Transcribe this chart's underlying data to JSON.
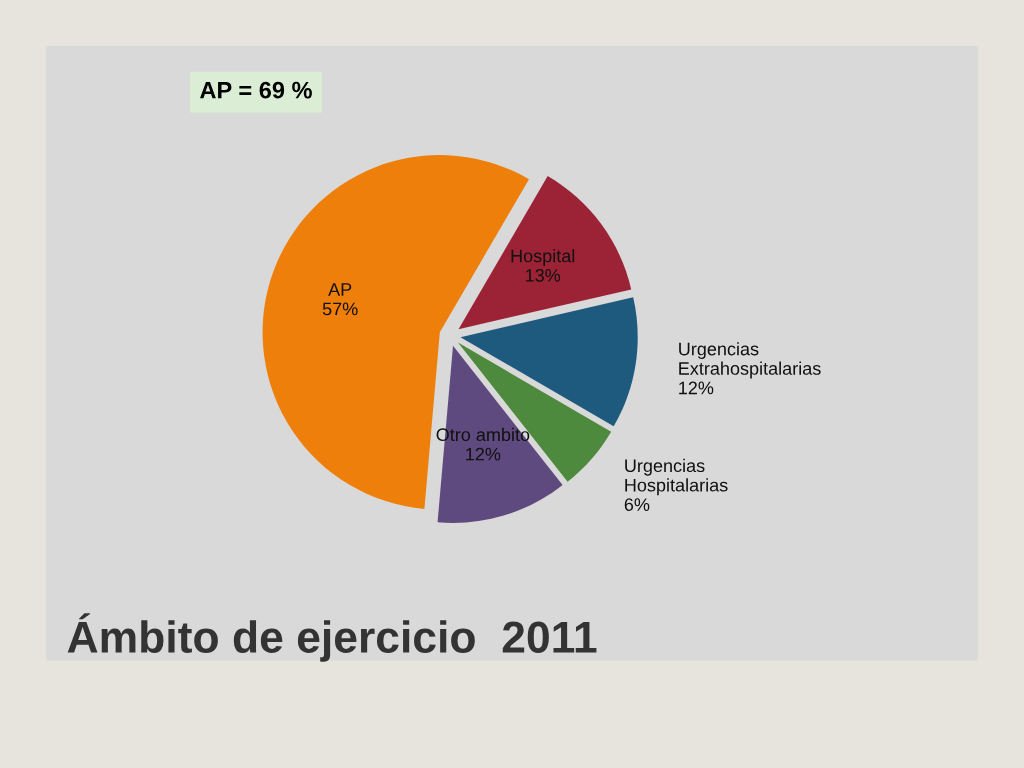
{
  "chart_data": {
    "type": "pie",
    "title": "Ámbito de ejercicio  2011",
    "annotations": [
      "AP = 69 %"
    ],
    "categories": [
      "AP",
      "Hospital",
      "Urgencias Extrahospitalarias",
      "Urgencias Hospitalarias",
      "Otro ambito"
    ],
    "values": [
      57,
      13,
      12,
      6,
      12
    ],
    "value_labels": [
      "57%",
      "13%",
      "12%",
      "6%",
      "12%"
    ],
    "colors": [
      "#ee7f0a",
      "#9b2335",
      "#1d5a7e",
      "#4e8a3e",
      "#5e4a7e"
    ],
    "legend": false
  }
}
